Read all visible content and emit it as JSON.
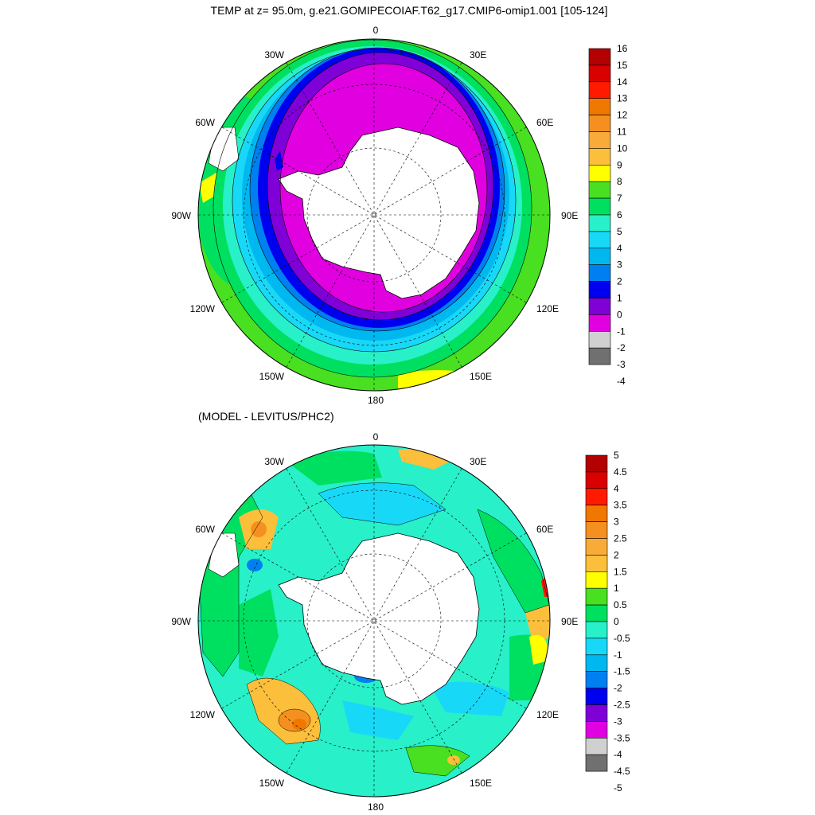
{
  "title": "TEMP at z=  95.0m, g.e21.GOMIPECOIAF.T62_g17.CMIP6-omip1.001 [105-124]",
  "bottom_title": "(MODEL - LEVITUS/PHC2)",
  "lon_labels": {
    "top": "0",
    "bottom": "180",
    "left": "90W",
    "right": "90E",
    "upper_left": "30W",
    "upper_right": "30E",
    "mid_left_upper": "60W",
    "mid_right_upper": "60E",
    "mid_left_lower": "120W",
    "mid_right_lower": "120E",
    "lower_left": "150W",
    "lower_right": "150E"
  },
  "colorbar_top": {
    "labels": [
      "16",
      "15",
      "14",
      "13",
      "12",
      "11",
      "10",
      "9",
      "8",
      "7",
      "6",
      "5",
      "4",
      "3",
      "2",
      "1",
      "0",
      "-1",
      "-2",
      "-3",
      "-4"
    ],
    "colors": [
      "#b30000",
      "#d90000",
      "#ff1a00",
      "#f07800",
      "#f59020",
      "#f8ab38",
      "#fbbf3c",
      "#ffff00",
      "#48e020",
      "#00e060",
      "#28f0c8",
      "#18d8f8",
      "#00b8f0",
      "#0080f0",
      "#0000f0",
      "#8000d8",
      "#e000e0",
      "#d0d0d0",
      "#707070"
    ]
  },
  "colorbar_bottom": {
    "labels": [
      "5",
      "4.5",
      "4",
      "3.5",
      "3",
      "2.5",
      "2",
      "1.5",
      "1",
      "0.5",
      "0",
      "-0.5",
      "-1",
      "-1.5",
      "-2",
      "-2.5",
      "-3",
      "-3.5",
      "-4",
      "-4.5",
      "-5"
    ],
    "colors": [
      "#b30000",
      "#d90000",
      "#ff1a00",
      "#f07800",
      "#f59020",
      "#f8ab38",
      "#fbbf3c",
      "#ffff00",
      "#48e020",
      "#00e060",
      "#28f0c8",
      "#18d8f8",
      "#00b8f0",
      "#0080f0",
      "#0000f0",
      "#8000d8",
      "#e000e0",
      "#d0d0d0",
      "#707070"
    ]
  },
  "palette": {
    "magenta": "#e000e0",
    "purple": "#8000d8",
    "blue": "#0000f0",
    "mid_blue": "#0080f0",
    "sky": "#00b8f0",
    "cyan": "#18d8f8",
    "aqua": "#28f0c8",
    "green": "#00e060",
    "lime": "#48e020",
    "yellow": "#ffff00",
    "gold": "#fbbf3c",
    "orange": "#f59020",
    "dark_orange": "#f07800",
    "red": "#ff1a00",
    "land": "#ffffff"
  }
}
